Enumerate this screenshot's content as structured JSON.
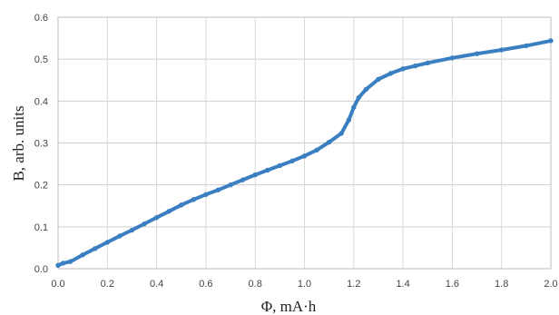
{
  "chart_data": {
    "type": "scatter",
    "title": "",
    "xlabel": "Φ, mA·h",
    "ylabel": "B, arb. units",
    "xlim": [
      0,
      2.0
    ],
    "ylim": [
      0,
      0.6
    ],
    "grid": true,
    "x_ticks": [
      "0.0",
      "0.2",
      "0.4",
      "0.6",
      "0.8",
      "1.0",
      "1.2",
      "1.4",
      "1.6",
      "1.8",
      "2.0"
    ],
    "y_ticks": [
      "0.0",
      "0.1",
      "0.2",
      "0.3",
      "0.4",
      "0.5",
      "0.6"
    ],
    "series": [
      {
        "color": "#3a7fc1",
        "x": [
          0.0,
          0.02,
          0.05,
          0.1,
          0.15,
          0.2,
          0.25,
          0.3,
          0.35,
          0.4,
          0.45,
          0.5,
          0.55,
          0.6,
          0.65,
          0.7,
          0.75,
          0.8,
          0.85,
          0.9,
          0.95,
          1.0,
          1.05,
          1.1,
          1.15,
          1.18,
          1.2,
          1.22,
          1.25,
          1.3,
          1.35,
          1.4,
          1.45,
          1.5,
          1.6,
          1.7,
          1.8,
          1.9,
          2.0
        ],
        "y": [
          0.008,
          0.013,
          0.017,
          0.033,
          0.048,
          0.063,
          0.078,
          0.092,
          0.107,
          0.122,
          0.137,
          0.152,
          0.165,
          0.177,
          0.188,
          0.2,
          0.212,
          0.224,
          0.235,
          0.246,
          0.257,
          0.269,
          0.283,
          0.302,
          0.323,
          0.355,
          0.385,
          0.408,
          0.428,
          0.452,
          0.466,
          0.477,
          0.484,
          0.491,
          0.503,
          0.513,
          0.522,
          0.532,
          0.544
        ]
      }
    ]
  }
}
